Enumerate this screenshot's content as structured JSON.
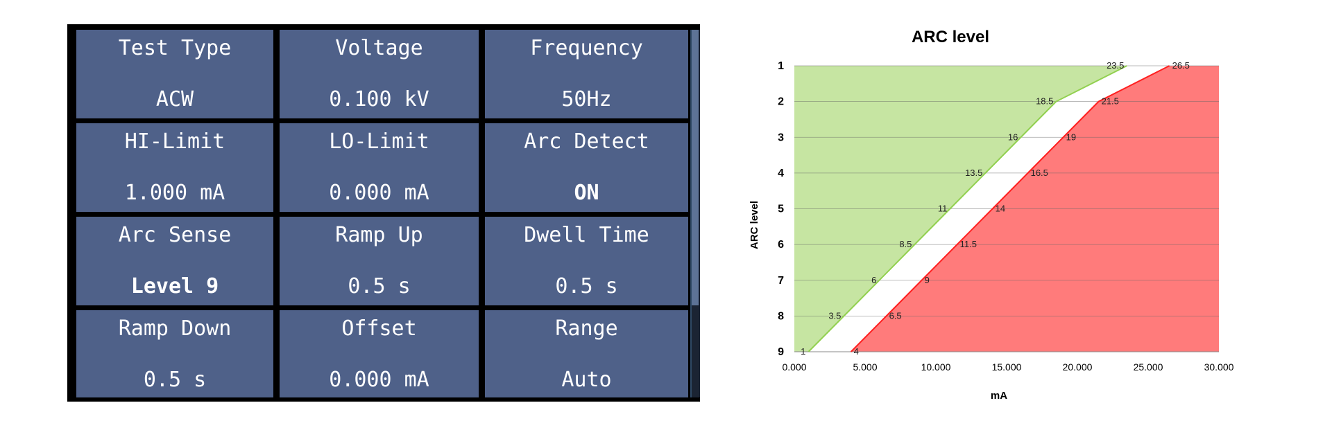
{
  "panel": {
    "cells": [
      {
        "label": "Test Type",
        "value": "ACW"
      },
      {
        "label": "Voltage",
        "value": "0.100 kV"
      },
      {
        "label": "Frequency",
        "value": "50Hz"
      },
      {
        "label": "HI-Limit",
        "value": "1.000 mA"
      },
      {
        "label": "LO-Limit",
        "value": "0.000 mA"
      },
      {
        "label": "Arc Detect",
        "value": "ON"
      },
      {
        "label": "Arc Sense",
        "value": "Level 9"
      },
      {
        "label": "Ramp Up",
        "value": "0.5 s"
      },
      {
        "label": "Dwell Time",
        "value": "0.5 s"
      },
      {
        "label": "Ramp Down",
        "value": "0.5 s"
      },
      {
        "label": "Offset",
        "value": "0.000 mA"
      },
      {
        "label": "Range",
        "value": "Auto"
      }
    ],
    "colors": {
      "cell": "#4f6189",
      "grid": "#000000",
      "text": "#ffffff"
    }
  },
  "chart_data": {
    "type": "area",
    "title": "ARC level",
    "xlabel": "mA",
    "ylabel": "ARC level",
    "xlim": [
      0,
      30
    ],
    "x_ticks": [
      "0.000",
      "5.000",
      "10.000",
      "15.000",
      "20.000",
      "25.000",
      "30.000"
    ],
    "levels": [
      1,
      2,
      3,
      4,
      5,
      6,
      7,
      8,
      9
    ],
    "y_reversed": true,
    "grid": true,
    "legend": "none",
    "series": [
      {
        "color": "#c6e5a2",
        "line_color": "#92d050",
        "values": [
          23.5,
          18.5,
          16,
          13.5,
          11,
          8.5,
          6,
          3.5,
          1
        ],
        "labels": [
          "23.5",
          "18.5",
          "16",
          "13.5",
          "11",
          "8.5",
          "6",
          "3.5",
          "1"
        ]
      },
      {
        "color": "#ff7b7b",
        "line_color": "#ff2020",
        "values": [
          26.5,
          21.5,
          19,
          16.5,
          14,
          11.5,
          9,
          6.5,
          4
        ],
        "labels": [
          "26.5",
          "21.5",
          "19",
          "16.5",
          "14",
          "11.5",
          "9",
          "6.5",
          "4"
        ]
      }
    ]
  }
}
